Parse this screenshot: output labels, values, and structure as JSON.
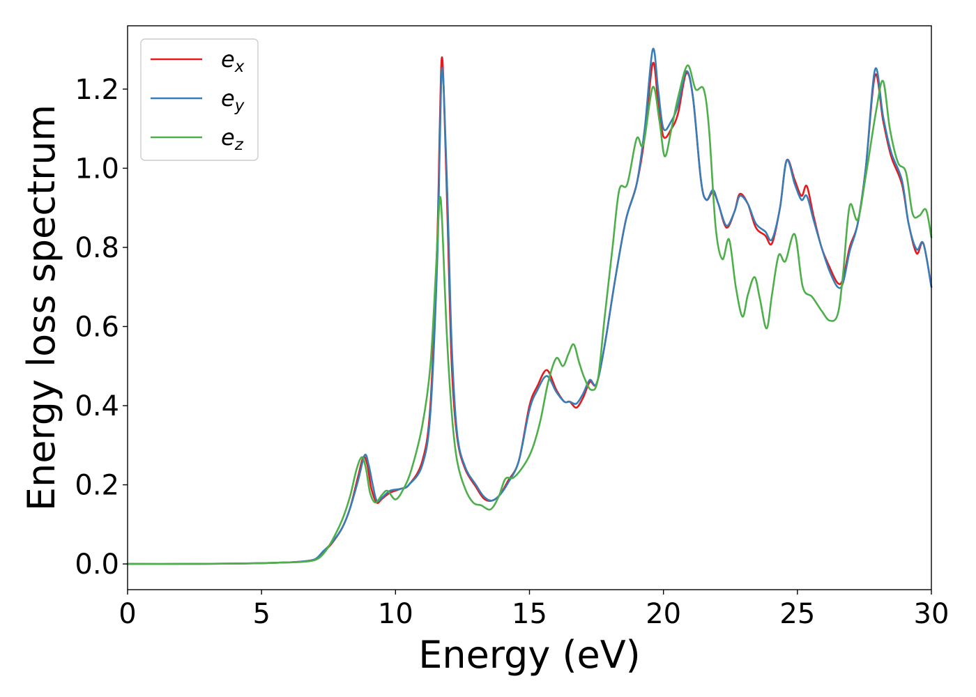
{
  "chart_data": {
    "type": "line",
    "title": "",
    "xlabel": "Energy (eV)",
    "ylabel": "Energy loss spectrum",
    "xlim": [
      0,
      30
    ],
    "ylim": [
      -0.065,
      1.36
    ],
    "xticks": [
      0,
      5,
      10,
      15,
      20,
      25,
      30
    ],
    "xtick_labels": [
      "0",
      "5",
      "10",
      "15",
      "20",
      "25",
      "30"
    ],
    "yticks": [
      0.0,
      0.2,
      0.4,
      0.6,
      0.8,
      1.0,
      1.2
    ],
    "ytick_labels": [
      "0.0",
      "0.2",
      "0.4",
      "0.6",
      "0.8",
      "1.0",
      "1.2"
    ],
    "grid": false,
    "legend": {
      "placement": "top-left"
    },
    "series": [
      {
        "name": "e_x",
        "label_base": "e",
        "label_sub": "x",
        "color": "#e41a1c",
        "points": [
          [
            0,
            0.0
          ],
          [
            2,
            0.0
          ],
          [
            4,
            0.001
          ],
          [
            5,
            0.002
          ],
          [
            6,
            0.004
          ],
          [
            6.5,
            0.006
          ],
          [
            7,
            0.012
          ],
          [
            7.3,
            0.03
          ],
          [
            7.6,
            0.05
          ],
          [
            8,
            0.09
          ],
          [
            8.3,
            0.14
          ],
          [
            8.6,
            0.22
          ],
          [
            8.8,
            0.27
          ],
          [
            8.95,
            0.25
          ],
          [
            9.1,
            0.19
          ],
          [
            9.3,
            0.155
          ],
          [
            9.5,
            0.165
          ],
          [
            9.8,
            0.18
          ],
          [
            10.2,
            0.19
          ],
          [
            10.5,
            0.2
          ],
          [
            11,
            0.26
          ],
          [
            11.3,
            0.4
          ],
          [
            11.55,
            0.8
          ],
          [
            11.65,
            1.1
          ],
          [
            11.72,
            1.275
          ],
          [
            11.8,
            1.2
          ],
          [
            11.95,
            0.85
          ],
          [
            12.1,
            0.5
          ],
          [
            12.3,
            0.32
          ],
          [
            12.6,
            0.24
          ],
          [
            13,
            0.195
          ],
          [
            13.3,
            0.165
          ],
          [
            13.6,
            0.16
          ],
          [
            13.9,
            0.175
          ],
          [
            14.2,
            0.21
          ],
          [
            14.6,
            0.26
          ],
          [
            15,
            0.4
          ],
          [
            15.3,
            0.45
          ],
          [
            15.65,
            0.49
          ],
          [
            16,
            0.44
          ],
          [
            16.3,
            0.41
          ],
          [
            16.5,
            0.41
          ],
          [
            16.75,
            0.395
          ],
          [
            17,
            0.42
          ],
          [
            17.25,
            0.46
          ],
          [
            17.5,
            0.455
          ],
          [
            17.8,
            0.55
          ],
          [
            18.2,
            0.72
          ],
          [
            18.6,
            0.87
          ],
          [
            19,
            0.96
          ],
          [
            19.3,
            1.08
          ],
          [
            19.6,
            1.265
          ],
          [
            19.8,
            1.17
          ],
          [
            20,
            1.08
          ],
          [
            20.3,
            1.1
          ],
          [
            20.55,
            1.14
          ],
          [
            20.85,
            1.24
          ],
          [
            21.1,
            1.18
          ],
          [
            21.4,
            0.97
          ],
          [
            21.6,
            0.92
          ],
          [
            21.85,
            0.94
          ],
          [
            22.05,
            0.91
          ],
          [
            22.35,
            0.85
          ],
          [
            22.65,
            0.89
          ],
          [
            22.85,
            0.935
          ],
          [
            23.15,
            0.91
          ],
          [
            23.45,
            0.85
          ],
          [
            23.8,
            0.83
          ],
          [
            24.05,
            0.81
          ],
          [
            24.35,
            0.9
          ],
          [
            24.6,
            1.02
          ],
          [
            24.9,
            0.97
          ],
          [
            25.15,
            0.93
          ],
          [
            25.35,
            0.955
          ],
          [
            25.6,
            0.88
          ],
          [
            25.9,
            0.8
          ],
          [
            26.2,
            0.75
          ],
          [
            26.5,
            0.71
          ],
          [
            26.7,
            0.72
          ],
          [
            26.95,
            0.8
          ],
          [
            27.25,
            0.86
          ],
          [
            27.55,
            1.0
          ],
          [
            27.9,
            1.235
          ],
          [
            28.2,
            1.12
          ],
          [
            28.5,
            1.03
          ],
          [
            28.9,
            0.96
          ],
          [
            29.15,
            0.86
          ],
          [
            29.45,
            0.785
          ],
          [
            29.7,
            0.81
          ],
          [
            30,
            0.7
          ]
        ]
      },
      {
        "name": "e_y",
        "label_base": "e",
        "label_sub": "y",
        "color": "#377eb8",
        "points": [
          [
            0,
            0.0
          ],
          [
            2,
            0.0
          ],
          [
            4,
            0.001
          ],
          [
            5,
            0.002
          ],
          [
            6,
            0.004
          ],
          [
            6.5,
            0.006
          ],
          [
            7,
            0.012
          ],
          [
            7.3,
            0.032
          ],
          [
            7.6,
            0.052
          ],
          [
            8,
            0.09
          ],
          [
            8.3,
            0.14
          ],
          [
            8.6,
            0.21
          ],
          [
            8.85,
            0.275
          ],
          [
            9,
            0.25
          ],
          [
            9.15,
            0.2
          ],
          [
            9.3,
            0.16
          ],
          [
            9.5,
            0.168
          ],
          [
            9.8,
            0.185
          ],
          [
            10.2,
            0.19
          ],
          [
            10.5,
            0.2
          ],
          [
            11,
            0.25
          ],
          [
            11.3,
            0.38
          ],
          [
            11.55,
            0.75
          ],
          [
            11.65,
            1.05
          ],
          [
            11.72,
            1.24
          ],
          [
            11.8,
            1.2
          ],
          [
            11.95,
            0.9
          ],
          [
            12.1,
            0.55
          ],
          [
            12.3,
            0.33
          ],
          [
            12.6,
            0.245
          ],
          [
            13,
            0.2
          ],
          [
            13.3,
            0.17
          ],
          [
            13.6,
            0.16
          ],
          [
            13.9,
            0.175
          ],
          [
            14.2,
            0.205
          ],
          [
            14.6,
            0.26
          ],
          [
            15,
            0.39
          ],
          [
            15.3,
            0.44
          ],
          [
            15.65,
            0.475
          ],
          [
            16,
            0.435
          ],
          [
            16.3,
            0.41
          ],
          [
            16.5,
            0.41
          ],
          [
            16.75,
            0.405
          ],
          [
            17,
            0.43
          ],
          [
            17.25,
            0.465
          ],
          [
            17.5,
            0.455
          ],
          [
            17.8,
            0.55
          ],
          [
            18.2,
            0.72
          ],
          [
            18.6,
            0.87
          ],
          [
            19,
            0.96
          ],
          [
            19.3,
            1.1
          ],
          [
            19.6,
            1.3
          ],
          [
            19.8,
            1.2
          ],
          [
            20,
            1.1
          ],
          [
            20.3,
            1.12
          ],
          [
            20.55,
            1.16
          ],
          [
            20.85,
            1.245
          ],
          [
            21.1,
            1.18
          ],
          [
            21.4,
            0.97
          ],
          [
            21.6,
            0.92
          ],
          [
            21.85,
            0.945
          ],
          [
            22.05,
            0.91
          ],
          [
            22.35,
            0.855
          ],
          [
            22.65,
            0.89
          ],
          [
            22.85,
            0.93
          ],
          [
            23.15,
            0.91
          ],
          [
            23.45,
            0.86
          ],
          [
            23.8,
            0.84
          ],
          [
            24.05,
            0.82
          ],
          [
            24.35,
            0.9
          ],
          [
            24.6,
            1.02
          ],
          [
            24.9,
            0.96
          ],
          [
            25.15,
            0.92
          ],
          [
            25.35,
            0.93
          ],
          [
            25.6,
            0.87
          ],
          [
            25.9,
            0.8
          ],
          [
            26.2,
            0.74
          ],
          [
            26.5,
            0.7
          ],
          [
            26.7,
            0.71
          ],
          [
            26.95,
            0.79
          ],
          [
            27.25,
            0.86
          ],
          [
            27.55,
            1.0
          ],
          [
            27.9,
            1.25
          ],
          [
            28.2,
            1.13
          ],
          [
            28.5,
            1.04
          ],
          [
            28.9,
            0.97
          ],
          [
            29.15,
            0.86
          ],
          [
            29.45,
            0.795
          ],
          [
            29.7,
            0.81
          ],
          [
            30,
            0.7
          ]
        ]
      },
      {
        "name": "e_z",
        "label_base": "e",
        "label_sub": "z",
        "color": "#4daf4a",
        "points": [
          [
            0,
            0.0
          ],
          [
            2,
            0.0
          ],
          [
            4,
            0.001
          ],
          [
            5,
            0.002
          ],
          [
            6,
            0.004
          ],
          [
            6.5,
            0.005
          ],
          [
            7,
            0.01
          ],
          [
            7.3,
            0.025
          ],
          [
            7.6,
            0.055
          ],
          [
            8,
            0.11
          ],
          [
            8.3,
            0.17
          ],
          [
            8.55,
            0.24
          ],
          [
            8.75,
            0.27
          ],
          [
            8.9,
            0.24
          ],
          [
            9.05,
            0.18
          ],
          [
            9.25,
            0.155
          ],
          [
            9.5,
            0.175
          ],
          [
            9.7,
            0.185
          ],
          [
            10,
            0.163
          ],
          [
            10.3,
            0.19
          ],
          [
            10.6,
            0.24
          ],
          [
            11,
            0.35
          ],
          [
            11.3,
            0.5
          ],
          [
            11.5,
            0.73
          ],
          [
            11.65,
            0.922
          ],
          [
            11.75,
            0.85
          ],
          [
            11.9,
            0.6
          ],
          [
            12.1,
            0.38
          ],
          [
            12.3,
            0.26
          ],
          [
            12.6,
            0.19
          ],
          [
            12.9,
            0.155
          ],
          [
            13.2,
            0.148
          ],
          [
            13.55,
            0.138
          ],
          [
            13.85,
            0.17
          ],
          [
            14.1,
            0.215
          ],
          [
            14.4,
            0.218
          ],
          [
            14.8,
            0.25
          ],
          [
            15.1,
            0.29
          ],
          [
            15.4,
            0.36
          ],
          [
            15.7,
            0.46
          ],
          [
            16,
            0.52
          ],
          [
            16.25,
            0.5
          ],
          [
            16.45,
            0.53
          ],
          [
            16.65,
            0.555
          ],
          [
            16.85,
            0.51
          ],
          [
            17.05,
            0.47
          ],
          [
            17.3,
            0.44
          ],
          [
            17.55,
            0.465
          ],
          [
            17.8,
            0.62
          ],
          [
            18.1,
            0.8
          ],
          [
            18.35,
            0.945
          ],
          [
            18.65,
            0.96
          ],
          [
            19,
            1.075
          ],
          [
            19.25,
            1.06
          ],
          [
            19.6,
            1.205
          ],
          [
            19.85,
            1.12
          ],
          [
            20.05,
            1.03
          ],
          [
            20.3,
            1.1
          ],
          [
            20.55,
            1.18
          ],
          [
            20.9,
            1.26
          ],
          [
            21.2,
            1.2
          ],
          [
            21.5,
            1.2
          ],
          [
            21.7,
            1.1
          ],
          [
            21.95,
            0.85
          ],
          [
            22.2,
            0.77
          ],
          [
            22.45,
            0.82
          ],
          [
            22.7,
            0.7
          ],
          [
            22.95,
            0.625
          ],
          [
            23.15,
            0.68
          ],
          [
            23.4,
            0.725
          ],
          [
            23.6,
            0.67
          ],
          [
            23.85,
            0.595
          ],
          [
            24.05,
            0.68
          ],
          [
            24.3,
            0.78
          ],
          [
            24.55,
            0.765
          ],
          [
            24.9,
            0.833
          ],
          [
            25.2,
            0.7
          ],
          [
            25.55,
            0.675
          ],
          [
            25.9,
            0.64
          ],
          [
            26.2,
            0.615
          ],
          [
            26.5,
            0.63
          ],
          [
            26.7,
            0.73
          ],
          [
            26.95,
            0.905
          ],
          [
            27.25,
            0.87
          ],
          [
            27.55,
            0.98
          ],
          [
            27.95,
            1.15
          ],
          [
            28.2,
            1.22
          ],
          [
            28.45,
            1.1
          ],
          [
            28.75,
            1.015
          ],
          [
            29.05,
            0.99
          ],
          [
            29.3,
            0.885
          ],
          [
            29.55,
            0.88
          ],
          [
            29.8,
            0.895
          ],
          [
            30,
            0.825
          ]
        ]
      }
    ]
  }
}
